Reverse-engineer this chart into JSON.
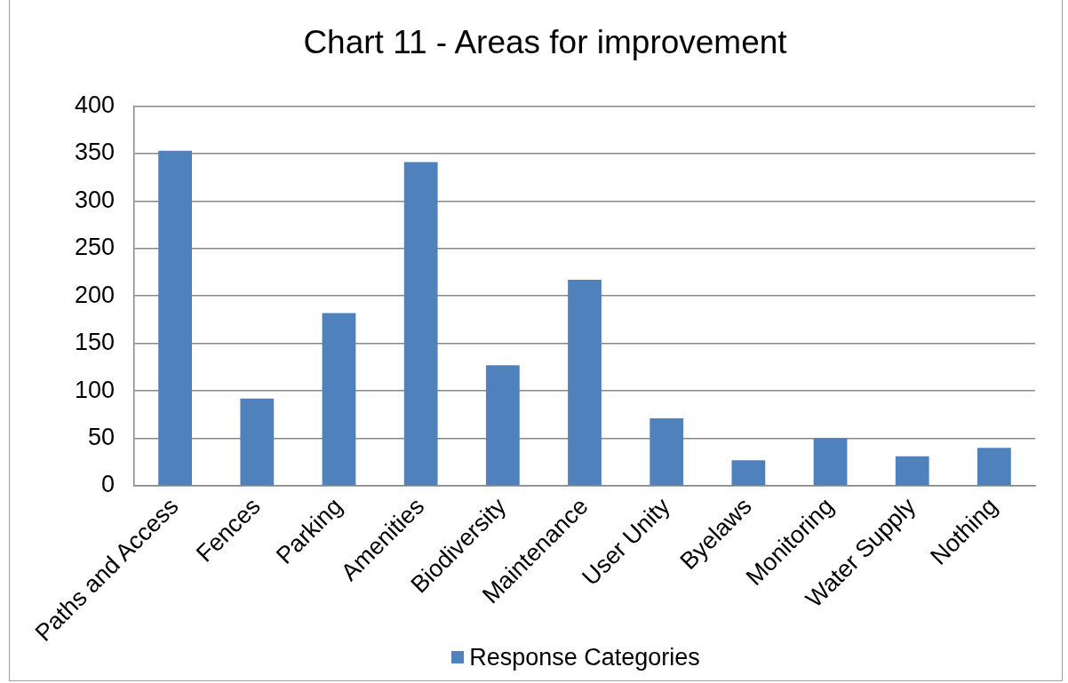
{
  "chart_data": {
    "type": "bar",
    "title": "Chart 11 - Areas for improvement",
    "categories": [
      "Paths and Access",
      "Fences",
      "Parking",
      "Amenities",
      "Biodiversity",
      "Maintenance",
      "User Unity",
      "Byelaws",
      "Monitoring",
      "Water Supply",
      "Nothing"
    ],
    "series": [
      {
        "name": "Response Categories",
        "color": "#4f81bd",
        "values": [
          353,
          92,
          182,
          341,
          127,
          217,
          71,
          27,
          50,
          31,
          40
        ]
      }
    ],
    "ylim": [
      0,
      400
    ],
    "yticks": [
      0,
      50,
      100,
      150,
      200,
      250,
      300,
      350,
      400
    ],
    "grid": "y",
    "legend": "bottom"
  }
}
